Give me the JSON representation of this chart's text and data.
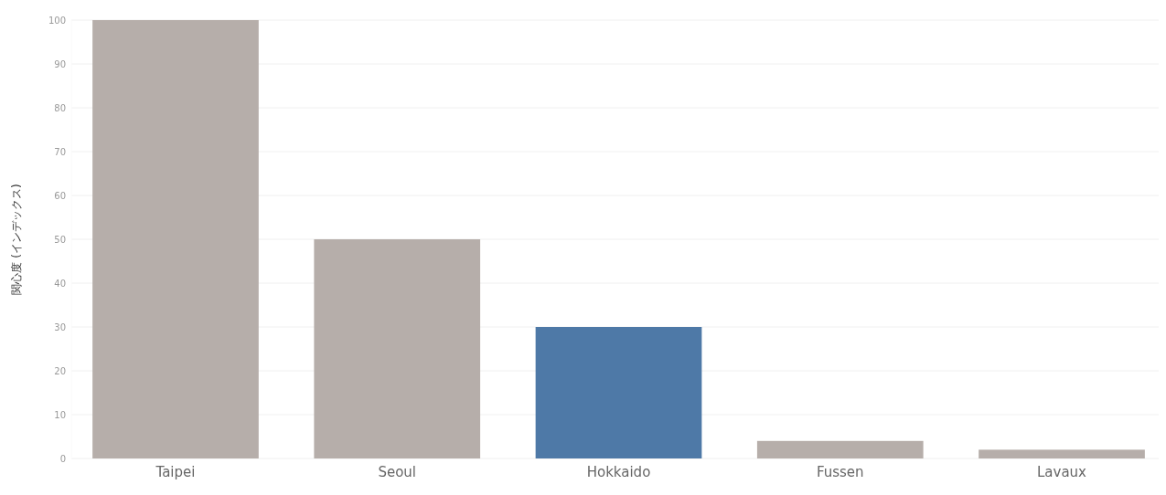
{
  "chart_data": {
    "type": "bar",
    "ylabel": "関心度 (インデックス)",
    "categories": [
      "Taipei",
      "Seoul",
      "Hokkaido",
      "Fussen",
      "Lavaux"
    ],
    "values": [
      100,
      50,
      30,
      4,
      2
    ],
    "colors": [
      "#b6aeaa",
      "#b6aeaa",
      "#4e79a7",
      "#b6aeaa",
      "#b6aeaa"
    ],
    "ylim": [
      0,
      100
    ],
    "yticks": [
      0,
      10,
      20,
      30,
      40,
      50,
      60,
      70,
      80,
      90,
      100
    ],
    "grid": "y"
  }
}
